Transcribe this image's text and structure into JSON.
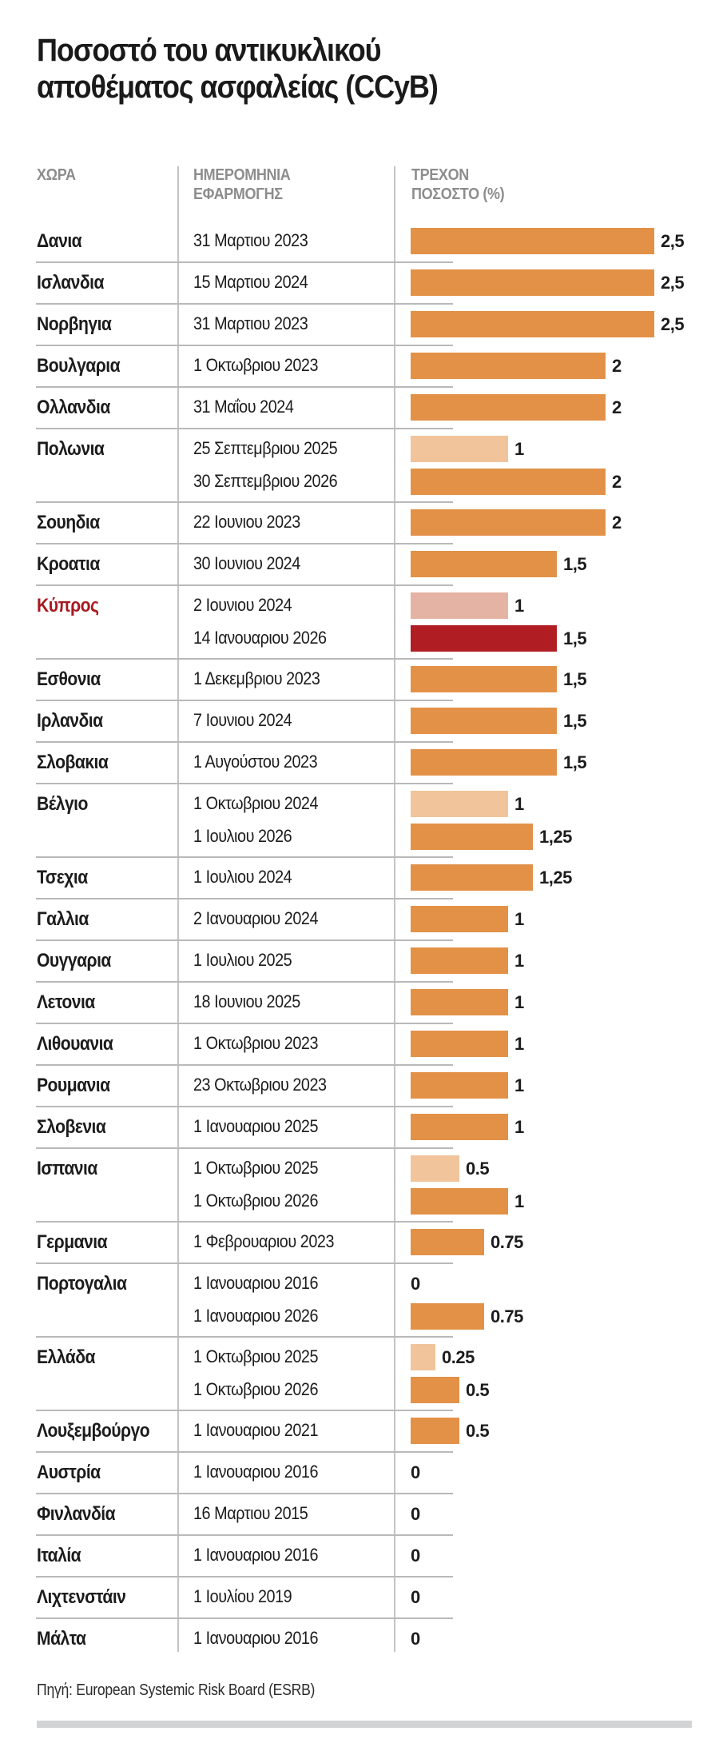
{
  "title_lines": [
    "Ποσοστό του αντικυκλικού",
    "αποθέματος ασφαλείας (CCyB)"
  ],
  "colors": {
    "current": "#e29147",
    "upcoming": "#f1c49b",
    "highlight_current": "#b01e23",
    "highlight_upcoming": "#e5b3a3",
    "highlight_text": "#a8191f",
    "header_text": "#8d8d8d"
  },
  "chart_data": {
    "type": "table",
    "title": "Ποσοστό του αντικυκλικού αποθέματος ασφαλείας (CCyB)",
    "columns": [
      "ΧΩΡΑ",
      "ΗΜΕΡΟΜΗΝΙΑ ΕΦΑΡΜΟΓΗΣ",
      "ΤΡΕΧΟΝ ΠΟΣΟΣΤΟ (%)"
    ],
    "column_header_lines": [
      [
        "ΧΩΡΑ"
      ],
      [
        "ΗΜΕΡΟΜΗΝΙΑ",
        "ΕΦΑΡΜΟΓΗΣ"
      ],
      [
        "ΤΡΕΧΟΝ",
        "ΠΟΣΟΣΤΟ (%)"
      ]
    ],
    "value_range": [
      0,
      2.5
    ],
    "rows": [
      {
        "country": "Δανια",
        "entries": [
          {
            "date": "31 Μαρτιου 2023",
            "value": 2.5,
            "label": "2,5",
            "kind": "current"
          }
        ]
      },
      {
        "country": "Ισλανδια",
        "entries": [
          {
            "date": "15 Μαρτιου 2024",
            "value": 2.5,
            "label": "2,5",
            "kind": "current"
          }
        ]
      },
      {
        "country": "Νορβηγια",
        "entries": [
          {
            "date": "31 Μαρτιου 2023",
            "value": 2.5,
            "label": "2,5",
            "kind": "current"
          }
        ]
      },
      {
        "country": "Βουλγαρια",
        "entries": [
          {
            "date": "1 Οκτωβριου 2023",
            "value": 2,
            "label": "2",
            "kind": "current"
          }
        ]
      },
      {
        "country": "Ολλανδια",
        "entries": [
          {
            "date": "31 Μαΐου 2024",
            "value": 2,
            "label": "2",
            "kind": "current"
          }
        ]
      },
      {
        "country": "Πολωνια",
        "entries": [
          {
            "date": "25 Σεπτεμβριου 2025",
            "value": 1,
            "label": "1",
            "kind": "upcoming"
          },
          {
            "date": "30 Σεπτεμβριου 2026",
            "value": 2,
            "label": "2",
            "kind": "current"
          }
        ]
      },
      {
        "country": "Σουηδια",
        "entries": [
          {
            "date": "22 Ιουνιου 2023",
            "value": 2,
            "label": "2",
            "kind": "current"
          }
        ]
      },
      {
        "country": "Κροατια",
        "entries": [
          {
            "date": "30 Ιουνιου 2024",
            "value": 1.5,
            "label": "1,5",
            "kind": "current"
          }
        ]
      },
      {
        "country": "Κύπρος",
        "highlight": true,
        "entries": [
          {
            "date": "2 Ιουνιου 2024",
            "value": 1,
            "label": "1",
            "kind": "highlight_upcoming"
          },
          {
            "date": "14 Ιανουαριου 2026",
            "value": 1.5,
            "label": "1,5",
            "kind": "highlight_current"
          }
        ]
      },
      {
        "country": "Εσθονια",
        "entries": [
          {
            "date": "1 Δεκεμβριου 2023",
            "value": 1.5,
            "label": "1,5",
            "kind": "current"
          }
        ]
      },
      {
        "country": "Ιρλανδια",
        "entries": [
          {
            "date": "7 Ιουνιου 2024",
            "value": 1.5,
            "label": "1,5",
            "kind": "current"
          }
        ]
      },
      {
        "country": "Σλοβακια",
        "entries": [
          {
            "date": "1 Αυγούστου 2023",
            "value": 1.5,
            "label": "1,5",
            "kind": "current"
          }
        ]
      },
      {
        "country": "Βέλγιο",
        "entries": [
          {
            "date": "1 Οκτωβριου 2024",
            "value": 1,
            "label": "1",
            "kind": "upcoming"
          },
          {
            "date": "1 Ιουλιου 2026",
            "value": 1.25,
            "label": "1,25",
            "kind": "current"
          }
        ]
      },
      {
        "country": "Τσεχια",
        "entries": [
          {
            "date": "1 Ιουλιου 2024",
            "value": 1.25,
            "label": "1,25",
            "kind": "current"
          }
        ]
      },
      {
        "country": "Γαλλια",
        "entries": [
          {
            "date": "2 Ιανουαριου 2024",
            "value": 1,
            "label": "1",
            "kind": "current"
          }
        ]
      },
      {
        "country": "Ουγγαρια",
        "entries": [
          {
            "date": "1 Ιουλιου 2025",
            "value": 1,
            "label": "1",
            "kind": "current"
          }
        ]
      },
      {
        "country": "Λετονια",
        "entries": [
          {
            "date": "18 Ιουνιου 2025",
            "value": 1,
            "label": "1",
            "kind": "current"
          }
        ]
      },
      {
        "country": "Λιθουανια",
        "entries": [
          {
            "date": "1 Οκτωβριου 2023",
            "value": 1,
            "label": "1",
            "kind": "current"
          }
        ]
      },
      {
        "country": "Ρουμανια",
        "entries": [
          {
            "date": "23 Οκτωβριου 2023",
            "value": 1,
            "label": "1",
            "kind": "current"
          }
        ]
      },
      {
        "country": "Σλοβενια",
        "entries": [
          {
            "date": "1 Ιανουαριου 2025",
            "value": 1,
            "label": "1",
            "kind": "current"
          }
        ]
      },
      {
        "country": "Ισπανια",
        "entries": [
          {
            "date": "1 Οκτωβριου 2025",
            "value": 0.5,
            "label": "0.5",
            "kind": "upcoming"
          },
          {
            "date": "1 Οκτωβριου 2026",
            "value": 1,
            "label": "1",
            "kind": "current"
          }
        ]
      },
      {
        "country": "Γερμανια",
        "entries": [
          {
            "date": "1 Φεβρουαριου 2023",
            "value": 0.75,
            "label": "0.75",
            "kind": "current"
          }
        ]
      },
      {
        "country": "Πορτογαλια",
        "entries": [
          {
            "date": "1 Ιανουαριου 2016",
            "value": 0,
            "label": "0",
            "kind": "current"
          },
          {
            "date": "1 Ιανουαριου 2026",
            "value": 0.75,
            "label": "0.75",
            "kind": "current"
          }
        ]
      },
      {
        "country": "Ελλάδα",
        "entries": [
          {
            "date": "1 Οκτωβριου 2025",
            "value": 0.25,
            "label": "0.25",
            "kind": "upcoming"
          },
          {
            "date": "1 Οκτωβριου 2026",
            "value": 0.5,
            "label": "0.5",
            "kind": "current"
          }
        ]
      },
      {
        "country": "Λουξεμβούργο",
        "entries": [
          {
            "date": "1 Ιανουαριου 2021",
            "value": 0.5,
            "label": "0.5",
            "kind": "current"
          }
        ]
      },
      {
        "country": "Αυστρία",
        "entries": [
          {
            "date": "1 Ιανουαριου 2016",
            "value": 0,
            "label": "0",
            "kind": "current"
          }
        ]
      },
      {
        "country": "Φινλανδία",
        "entries": [
          {
            "date": "16 Μαρτιου 2015",
            "value": 0,
            "label": "0",
            "kind": "current"
          }
        ]
      },
      {
        "country": "Ιταλία",
        "entries": [
          {
            "date": "1 Ιανουαριου 2016",
            "value": 0,
            "label": "0",
            "kind": "current"
          }
        ]
      },
      {
        "country": "Λιχτενστάιν",
        "entries": [
          {
            "date": "1 Ιουλίου 2019",
            "value": 0,
            "label": "0",
            "kind": "current"
          }
        ]
      },
      {
        "country": "Μάλτα",
        "entries": [
          {
            "date": "1 Ιανουαριου 2016",
            "value": 0,
            "label": "0",
            "kind": "current"
          }
        ]
      }
    ]
  },
  "source": "Πηγή: European Systemic Risk Board (ESRB)"
}
